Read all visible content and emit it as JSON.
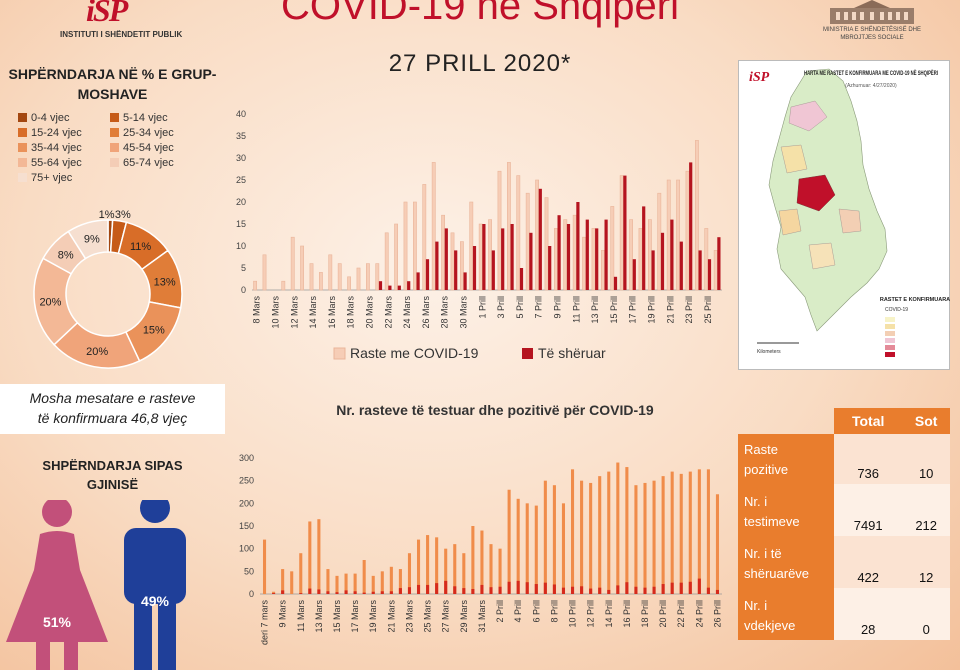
{
  "header": {
    "org_mark": "iSP",
    "org_name": "INSTITUTI I SHËNDETIT PUBLIK",
    "title": "COVID-19 në Shqipëri",
    "date": "27 PRILL 2020*",
    "ministry": "MINISTRIA E SHËNDETËSISË DHE MBROJTJES SOCIALE"
  },
  "age_section": {
    "title_line1": "SHPËRNDARJA NË % E GRUP-",
    "title_line2": "MOSHAVE",
    "mean_age_line1": "Mosha mesatare e rasteve",
    "mean_age_line2": "të konfirmuara 46,8 vjeç"
  },
  "gender_section": {
    "title_line1": "SHPËRNDARJA SIPAS",
    "title_line2": "GJINISË",
    "female_pct": "51%",
    "male_pct": "49%",
    "female_color": "#c2507a",
    "male_color": "#1f3f99"
  },
  "map_panel": {
    "logo": "iSP",
    "title": "HARTA ME RASTET E KONFIRMUARA ME COVID-19 NË SHQIPËRI",
    "subtitle": "(Azhurnuar: 4/27/2020)",
    "legend_title": "RASTET E KONFIRMUARA",
    "legend_sub": "COVID-19",
    "scale_label": "Kilometers"
  },
  "stats_table": {
    "headers": [
      "Total",
      "Sot"
    ],
    "rows": [
      {
        "label_line1": "Raste",
        "label_line2": "pozitive",
        "total": "736",
        "today": "10"
      },
      {
        "label_line1": "Nr. i",
        "label_line2": "testimeve",
        "total": "7491",
        "today": "212"
      },
      {
        "label_line1": "Nr. i të",
        "label_line2": "shëruarëve",
        "total": "422",
        "today": "12"
      },
      {
        "label_line1": "Nr. i",
        "label_line2": "vdekjeve",
        "total": "28",
        "today": "0"
      }
    ]
  },
  "colors": {
    "accent_orange": "#e97d2d",
    "title_red": "#c0102a",
    "cases_bar": "#f6cdb6",
    "recovered_bar": "#b5141f",
    "tests_bar": "#f08c4a",
    "positive_bar": "#d62a1c"
  },
  "chart_data": [
    {
      "type": "pie",
      "categories": [
        "0-4 vjec",
        "5-14 vjec",
        "15-24 vjec",
        "25-34 vjec",
        "35-44 vjec",
        "45-54 vjec",
        "55-64 vjec",
        "65-74 vjec",
        "75+ vjec"
      ],
      "values": [
        1,
        3,
        11,
        13,
        15,
        20,
        20,
        8,
        9
      ],
      "labels": [
        "1%",
        "3%",
        "11%",
        "13%",
        "15%",
        "20%",
        "20%",
        "8%",
        "9%"
      ],
      "colors": [
        "#a34710",
        "#c65b18",
        "#d86d28",
        "#e07d38",
        "#ea925a",
        "#f0a47a",
        "#f3b896",
        "#f4cdb6",
        "#f6dfd0"
      ]
    },
    {
      "type": "bar",
      "categories": [
        "8 Mars",
        "9 Mars",
        "10 Mars",
        "11 Mars",
        "12 Mars",
        "13 Mars",
        "14 Mars",
        "15 Mars",
        "16 Mars",
        "17 Mars",
        "18 Mars",
        "19 Mars",
        "20 Mars",
        "21 Mars",
        "22 Mars",
        "23 Mars",
        "24 Mars",
        "25 Mars",
        "26 Mars",
        "27 Mars",
        "28 Mars",
        "29 Mars",
        "30 Mars",
        "31 Mars",
        "1 Prill",
        "2 Prill",
        "3 Prill",
        "4 Prill",
        "5 Prill",
        "6 Prill",
        "7 Prill",
        "8 Prill",
        "9 Prill",
        "10 Prill",
        "11 Prill",
        "12 Prill",
        "13 Prill",
        "14 Prill",
        "15 Prill",
        "16 Prill",
        "17 Prill",
        "18 Prill",
        "19 Prill",
        "20 Prill",
        "21 Prill",
        "22 Prill",
        "23 Prill",
        "24 Prill",
        "25 Prill",
        "26 Prill"
      ],
      "tick_labels": [
        "8 Mars",
        "10 Mars",
        "12 Mars",
        "14 Mars",
        "16 Mars",
        "18 Mars",
        "20 Mars",
        "22 Mars",
        "24 Mars",
        "26 Mars",
        "28 Mars",
        "30 Mars",
        "1 Prill",
        "3 Prill",
        "5 Prill",
        "7 Prill",
        "9 Prill",
        "11 Prill",
        "13 Prill",
        "15 Prill",
        "17 Prill",
        "19 Prill",
        "21 Prill",
        "23 Prill",
        "25 Prill"
      ],
      "series": [
        {
          "name": "Raste me COVID-19",
          "values": [
            2,
            8,
            0,
            2,
            12,
            10,
            6,
            4,
            8,
            6,
            3,
            5,
            6,
            6,
            13,
            15,
            20,
            20,
            24,
            29,
            17,
            13,
            11,
            20,
            15,
            16,
            27,
            29,
            26,
            22,
            25,
            21,
            14,
            16,
            17,
            12,
            14,
            9,
            19,
            26,
            16,
            14,
            16,
            22,
            25,
            25,
            27,
            34,
            14,
            9
          ]
        },
        {
          "name": "Të shëruar",
          "values": [
            0,
            0,
            0,
            0,
            0,
            0,
            0,
            0,
            0,
            0,
            0,
            0,
            0,
            2,
            1,
            1,
            2,
            4,
            7,
            11,
            14,
            9,
            4,
            10,
            15,
            9,
            14,
            15,
            5,
            13,
            23,
            10,
            17,
            15,
            20,
            16,
            14,
            16,
            3,
            26,
            7,
            19,
            9,
            13,
            16,
            11,
            29,
            9,
            7,
            12
          ]
        }
      ],
      "ylim": [
        0,
        40
      ],
      "yticks": [
        0,
        5,
        10,
        15,
        20,
        25,
        30,
        35,
        40
      ],
      "legend_position": "bottom"
    },
    {
      "type": "bar",
      "title": "Nr. rasteve të testuar dhe pozitivë për COVID-19",
      "categories": [
        "deri 7 mars",
        "8 Mars",
        "9 Mars",
        "10 Mars",
        "11 Mars",
        "12 Mars",
        "13 Mars",
        "14 Mars",
        "15 Mars",
        "16 Mars",
        "17 Mars",
        "18 Mars",
        "19 Mars",
        "20 Mars",
        "21 Mars",
        "22 Mars",
        "23 Mars",
        "24 Mars",
        "25 Mars",
        "26 Mars",
        "27 Mars",
        "28 Mars",
        "29 Mars",
        "30 Mars",
        "31 Mars",
        "1 Prill",
        "2 Prill",
        "3 Prill",
        "4 Prill",
        "5 Prill",
        "6 Prill",
        "7 Prill",
        "8 Prill",
        "9 Prill",
        "10 Prill",
        "11 Prill",
        "12 Prill",
        "13 Prill",
        "14 Prill",
        "15 Prill",
        "16 Prill",
        "17 Prill",
        "18 Prill",
        "19 Prill",
        "20 Prill",
        "21 Prill",
        "22 Prill",
        "23 Prill",
        "24 Prill",
        "25 Prill",
        "26 Prill"
      ],
      "tick_labels": [
        "deri 7 mars",
        "9 Mars",
        "11 Mars",
        "13 Mars",
        "15 Mars",
        "17 Mars",
        "19 Mars",
        "21 Mars",
        "23 Mars",
        "25 Mars",
        "27 Mars",
        "29 Mars",
        "31 Mars",
        "2 Prill",
        "4 Prill",
        "6 Prill",
        "8 Prill",
        "10 Prill",
        "12 Prill",
        "14 Prill",
        "16 Prill",
        "18 Prill",
        "20 Prill",
        "22 Prill",
        "24 Prill",
        "26 Prill"
      ],
      "series": [
        {
          "name": "Të testuar",
          "values": [
            120,
            5,
            55,
            50,
            90,
            160,
            165,
            55,
            40,
            45,
            45,
            75,
            40,
            50,
            60,
            55,
            90,
            120,
            130,
            125,
            100,
            110,
            90,
            150,
            140,
            110,
            100,
            230,
            210,
            200,
            195,
            250,
            240,
            200,
            275,
            250,
            245,
            260,
            270,
            290,
            280,
            240,
            245,
            250,
            260,
            270,
            265,
            270,
            275,
            275,
            220
          ]
        },
        {
          "name": "Pozitivë",
          "values": [
            0,
            2,
            8,
            0,
            2,
            12,
            10,
            6,
            4,
            8,
            6,
            3,
            5,
            6,
            6,
            13,
            15,
            20,
            20,
            24,
            29,
            17,
            13,
            11,
            20,
            15,
            16,
            27,
            29,
            26,
            22,
            25,
            21,
            14,
            16,
            17,
            12,
            14,
            9,
            19,
            26,
            16,
            14,
            16,
            22,
            25,
            25,
            27,
            34,
            14,
            9
          ]
        }
      ],
      "ylim": [
        0,
        300
      ],
      "yticks": [
        0,
        50,
        100,
        150,
        200,
        250,
        300
      ]
    }
  ]
}
